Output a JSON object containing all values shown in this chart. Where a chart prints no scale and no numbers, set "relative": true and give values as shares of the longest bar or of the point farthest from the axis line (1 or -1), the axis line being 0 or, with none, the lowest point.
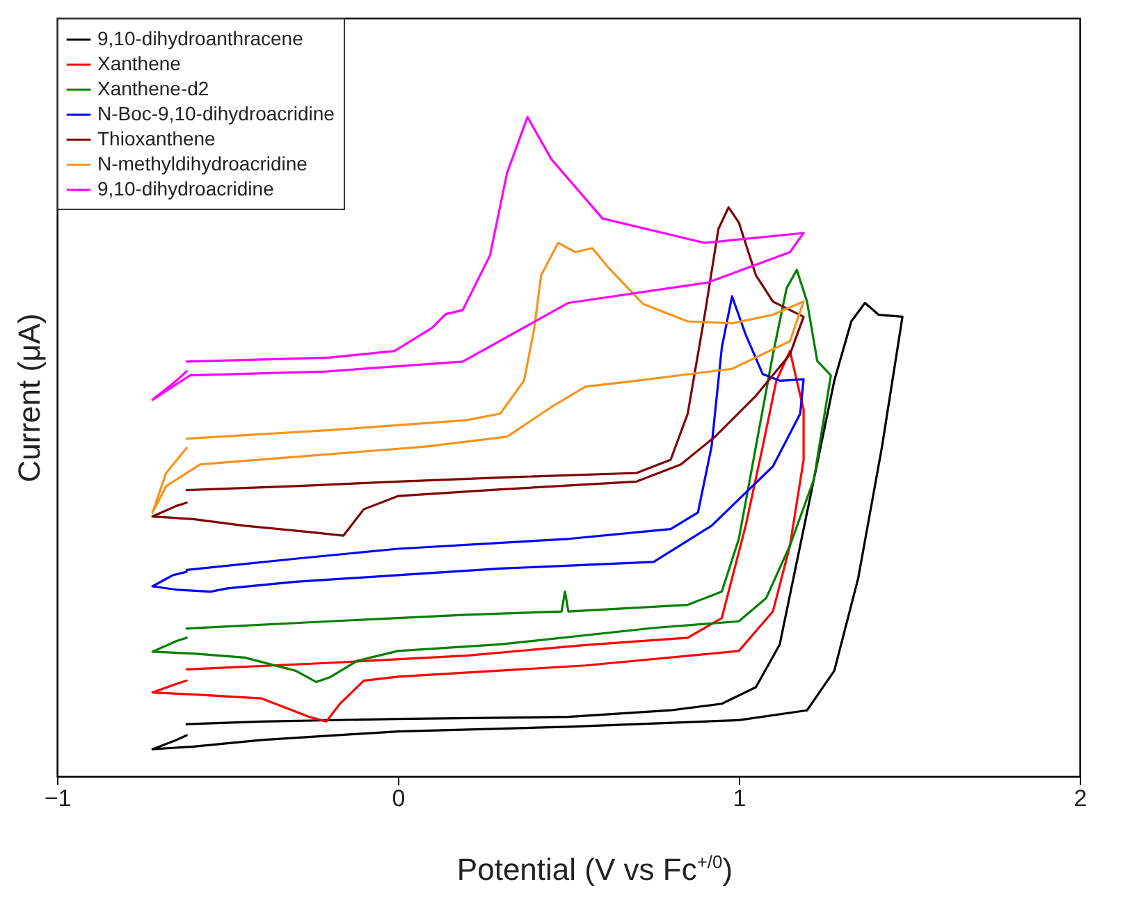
{
  "chart_data": {
    "type": "line",
    "xlabel": "Potential (V vs Fc$^{+/0}$)",
    "ylabel": "Current (μA)",
    "relative": true,
    "xlim": [
      -1,
      2
    ],
    "xticks": [
      -1,
      0,
      1,
      2
    ],
    "tick_labels": "x",
    "legend": "top left",
    "series": [
      {
        "name": "9,10-dihydroanthracene",
        "color": "#000000",
        "x": [
          -0.62,
          -0.4,
          0,
          0.5,
          0.8,
          0.95,
          1.05,
          1.12,
          1.2,
          1.28,
          1.33,
          1.37,
          1.41,
          1.48,
          1.42,
          1.35,
          1.28,
          1.2,
          1.0,
          0.5,
          0,
          -0.4,
          -0.6,
          -0.72,
          -0.65,
          -0.62
        ],
        "values": [
          0.079,
          0.083,
          0.087,
          0.09,
          0.1,
          0.11,
          0.135,
          0.2,
          0.4,
          0.6,
          0.69,
          0.718,
          0.7,
          0.697,
          0.5,
          0.3,
          0.16,
          0.1,
          0.085,
          0.075,
          0.068,
          0.055,
          0.045,
          0.041,
          0.055,
          0.062
        ]
      },
      {
        "name": "Xanthene",
        "color": "#ff0000",
        "x": [
          -0.62,
          -0.2,
          0.2,
          0.55,
          0.85,
          0.95,
          1.02,
          1.07,
          1.11,
          1.15,
          1.17,
          1.19,
          1.19,
          1.15,
          1.1,
          1.0,
          0.55,
          0,
          -0.1,
          -0.17,
          -0.21,
          -0.26,
          -0.4,
          -0.6,
          -0.72,
          -0.65,
          -0.62
        ],
        "values": [
          0.162,
          0.172,
          0.183,
          0.199,
          0.21,
          0.24,
          0.38,
          0.5,
          0.6,
          0.645,
          0.6,
          0.556,
          0.48,
          0.35,
          0.25,
          0.19,
          0.168,
          0.151,
          0.145,
          0.11,
          0.083,
          0.09,
          0.118,
          0.124,
          0.127,
          0.14,
          0.145
        ]
      },
      {
        "name": "Xanthene-d2",
        "color": "#008000",
        "x": [
          -0.62,
          -0.2,
          0.2,
          0.48,
          0.49,
          0.5,
          0.85,
          0.95,
          1.0,
          1.05,
          1.1,
          1.14,
          1.17,
          1.2,
          1.23,
          1.27,
          1.22,
          1.15,
          1.08,
          1.0,
          0.75,
          0.3,
          0,
          -0.12,
          -0.2,
          -0.24,
          -0.3,
          -0.45,
          -0.6,
          -0.72,
          -0.65,
          -0.62
        ],
        "values": [
          0.224,
          0.235,
          0.245,
          0.25,
          0.28,
          0.25,
          0.26,
          0.28,
          0.36,
          0.5,
          0.64,
          0.74,
          0.768,
          0.72,
          0.63,
          0.608,
          0.45,
          0.35,
          0.27,
          0.235,
          0.225,
          0.2,
          0.19,
          0.175,
          0.15,
          0.143,
          0.16,
          0.18,
          0.186,
          0.189,
          0.205,
          0.21
        ]
      },
      {
        "name": "N-Boc-9,10-dihydroacridine",
        "color": "#0000ff",
        "x": [
          -0.62,
          -0.3,
          0,
          0.5,
          0.8,
          0.88,
          0.92,
          0.95,
          0.98,
          1.02,
          1.07,
          1.12,
          1.19,
          1.18,
          1.1,
          1.0,
          0.92,
          0.75,
          0.3,
          0,
          -0.3,
          -0.5,
          -0.55,
          -0.65,
          -0.72,
          -0.66,
          -0.62
        ],
        "values": [
          0.313,
          0.33,
          0.345,
          0.36,
          0.375,
          0.4,
          0.5,
          0.65,
          0.728,
          0.67,
          0.61,
          0.6,
          0.602,
          0.55,
          0.47,
          0.42,
          0.38,
          0.325,
          0.315,
          0.305,
          0.295,
          0.285,
          0.28,
          0.283,
          0.288,
          0.305,
          0.31
        ]
      },
      {
        "name": "Thioxanthene",
        "color": "#800000",
        "x": [
          -0.62,
          -0.3,
          0,
          0.35,
          0.7,
          0.8,
          0.85,
          0.9,
          0.94,
          0.97,
          1.0,
          1.05,
          1.1,
          1.19,
          1.15,
          1.05,
          0.93,
          0.83,
          0.7,
          0.3,
          0,
          -0.1,
          -0.16,
          -0.25,
          -0.45,
          -0.6,
          -0.72,
          -0.65,
          -0.62
        ],
        "values": [
          0.434,
          0.44,
          0.447,
          0.454,
          0.46,
          0.48,
          0.55,
          0.7,
          0.83,
          0.863,
          0.84,
          0.76,
          0.72,
          0.697,
          0.64,
          0.577,
          0.515,
          0.473,
          0.447,
          0.435,
          0.425,
          0.405,
          0.365,
          0.37,
          0.38,
          0.39,
          0.394,
          0.41,
          0.415
        ]
      },
      {
        "name": "N-methyldihydroacridine",
        "color": "#f7941d",
        "x": [
          -0.62,
          -0.2,
          0.2,
          0.3,
          0.37,
          0.4,
          0.42,
          0.47,
          0.52,
          0.57,
          0.62,
          0.72,
          0.85,
          0.98,
          1.1,
          1.19,
          1.15,
          0.98,
          0.7,
          0.55,
          0.45,
          0.32,
          0.08,
          -0.58,
          -0.68,
          -0.72,
          -0.68,
          -0.62
        ],
        "values": [
          0.512,
          0.525,
          0.54,
          0.55,
          0.6,
          0.68,
          0.76,
          0.809,
          0.795,
          0.801,
          0.77,
          0.716,
          0.69,
          0.687,
          0.7,
          0.72,
          0.66,
          0.618,
          0.6,
          0.591,
          0.56,
          0.515,
          0.5,
          0.473,
          0.44,
          0.4,
          0.46,
          0.498
        ]
      },
      {
        "name": "9,10-dihydroacridine",
        "color": "#ff00ff",
        "x": [
          -0.62,
          -0.2,
          -0.01,
          0.1,
          0.14,
          0.19,
          0.27,
          0.32,
          0.38,
          0.45,
          0.6,
          0.9,
          1.19,
          1.15,
          0.91,
          0.5,
          0.19,
          -0.21,
          -0.61,
          -0.72,
          -0.65,
          -0.62
        ],
        "values": [
          0.629,
          0.635,
          0.645,
          0.68,
          0.701,
          0.707,
          0.79,
          0.915,
          1.0,
          0.936,
          0.846,
          0.809,
          0.824,
          0.795,
          0.749,
          0.718,
          0.629,
          0.614,
          0.608,
          0.571,
          0.6,
          0.614
        ]
      }
    ]
  }
}
